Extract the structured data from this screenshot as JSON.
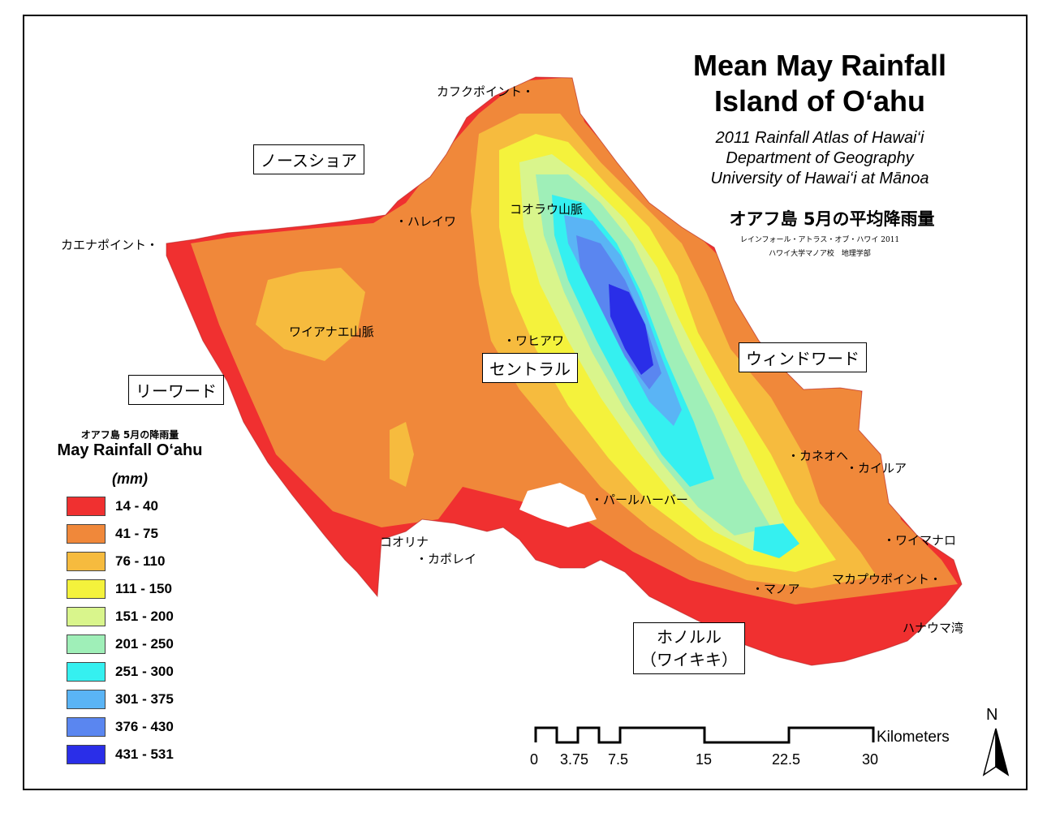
{
  "title": {
    "line1": "Mean May Rainfall",
    "line2": "Island of O‘ahu"
  },
  "subtitle": {
    "line1": "2011 Rainfall Atlas of Hawai‘i",
    "line2": "Department of Geography",
    "line3": "University of Hawai‘i at Mānoa"
  },
  "jp_title": "オアフ島 5月の平均降雨量",
  "jp_credit": {
    "line1": "レインフォール・アトラス・オブ・ハワイ 2011",
    "line2": "ハワイ大学マノア校　地理学部"
  },
  "regions": {
    "north_shore": "ノースショア",
    "leeward": "リーワード",
    "central": "セントラル",
    "windward": "ウィンドワード",
    "honolulu_line1": "ホノルル",
    "honolulu_line2": "（ワイキキ）"
  },
  "places": {
    "kahuku": "カフクポイント・",
    "kaena": "カエナポイント・",
    "haleiwa": "・ハレイワ",
    "koolau": "コオラウ山脈",
    "waianae_range": "ワイアナエ山脈",
    "wahiawa": "・ワヒアワ",
    "pearl_harbor": "・パールハーバー",
    "kaneohe": "・カネオヘ",
    "kailua": "・カイルア",
    "waimanalo": "・ワイマナロ",
    "makapuu": "マカプウポイント・",
    "manoa": "・マノア",
    "hanauma": "ハナウマ湾",
    "ko_olina": "コオリナ",
    "kapolei": "・カポレイ"
  },
  "legend": {
    "title_jp": "オアフ島 5月の降雨量",
    "title_en": "May Rainfall O‘ahu",
    "unit": "(mm)",
    "classes": [
      {
        "label": "14 - 40",
        "color": "#f03030"
      },
      {
        "label": "41 - 75",
        "color": "#f0883a"
      },
      {
        "label": "76 - 110",
        "color": "#f6bb3e"
      },
      {
        "label": "111 - 150",
        "color": "#f4f23c"
      },
      {
        "label": "151 - 200",
        "color": "#d9f58c"
      },
      {
        "label": "201 - 250",
        "color": "#9fefb8"
      },
      {
        "label": "251 - 300",
        "color": "#35f0f0"
      },
      {
        "label": "301 - 375",
        "color": "#5ab4f5"
      },
      {
        "label": "376 - 430",
        "color": "#5a86f0"
      },
      {
        "label": "431 - 531",
        "color": "#2a2ee8"
      }
    ]
  },
  "scale_bar": {
    "ticks": [
      "0",
      "3.75",
      "7.5",
      "15",
      "22.5",
      "30"
    ],
    "unit": "Kilometers"
  },
  "north_arrow": "N"
}
